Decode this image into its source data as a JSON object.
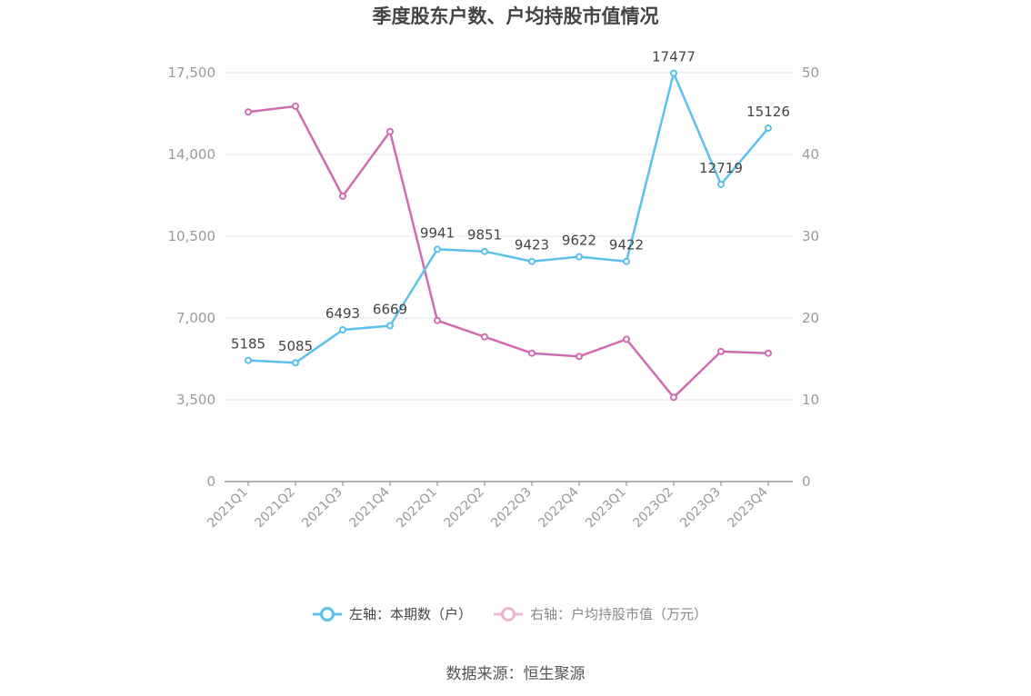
{
  "chart_data": {
    "type": "line",
    "title": "季度股东户数、户均持股市值情况",
    "categories": [
      "2021Q1",
      "2021Q2",
      "2021Q3",
      "2021Q4",
      "2022Q1",
      "2022Q2",
      "2022Q3",
      "2022Q4",
      "2023Q1",
      "2023Q2",
      "2023Q3",
      "2023Q4"
    ],
    "left_axis": {
      "min": 0,
      "max": 17500,
      "ticks": [
        "0",
        "3,500",
        "7,000",
        "10,500",
        "14,000",
        "17,500"
      ]
    },
    "right_axis": {
      "min": 0,
      "max": 50,
      "ticks": [
        "0",
        "10",
        "20",
        "30",
        "40",
        "50"
      ]
    },
    "grid": true,
    "legend_position": "bottom",
    "series": [
      {
        "name": "左轴：本期数（户）",
        "axis": "left",
        "color": "#5bc0eb",
        "values": [
          5185,
          5085,
          6493,
          6669,
          9941,
          9851,
          9423,
          9622,
          9422,
          17477,
          12719,
          15126
        ],
        "labels": [
          "5185",
          "5085",
          "6493",
          "6669",
          "9941",
          "9851",
          "9423",
          "9622",
          "9422",
          "17477",
          "12719",
          "15126"
        ]
      },
      {
        "name": "右轴：户均持股市值（万元）",
        "axis": "right",
        "color": "#d16bb0",
        "legend_color": "#eeb2d6",
        "values": [
          45.2,
          45.9,
          34.9,
          42.8,
          19.7,
          17.7,
          15.7,
          15.3,
          17.4,
          10.3,
          15.9,
          15.7
        ]
      }
    ]
  },
  "source": "数据来源：恒生聚源"
}
